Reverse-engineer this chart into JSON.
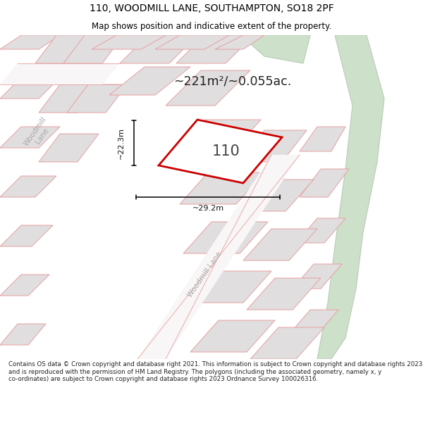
{
  "title": "110, WOODMILL LANE, SOUTHAMPTON, SO18 2PF",
  "subtitle": "Map shows position and indicative extent of the property.",
  "footer": "Contains OS data © Crown copyright and database right 2021. This information is subject to Crown copyright and database rights 2023 and is reproduced with the permission of HM Land Registry. The polygons (including the associated geometry, namely x, y co-ordinates) are subject to Crown copyright and database rights 2023 Ordnance Survey 100026316.",
  "area_label": "~221m²/~0.055ac.",
  "width_label": "~29.2m",
  "height_label": "~22.3m",
  "plot_number": "110",
  "map_bg": "#eeecec",
  "block_fill": "#e0dedf",
  "block_edge": "#e8a0a0",
  "road_fill": "#f8f6f6",
  "green_fill": "#cde0ca",
  "green_edge": "#b8ccb5",
  "plot_fill": "#ffffff",
  "plot_edge": "#cc0000",
  "road_label_color": "#aaaaaa",
  "dim_color": "#111111",
  "label_color": "#222222",
  "footer_color": "#222222",
  "white": "#ffffff"
}
